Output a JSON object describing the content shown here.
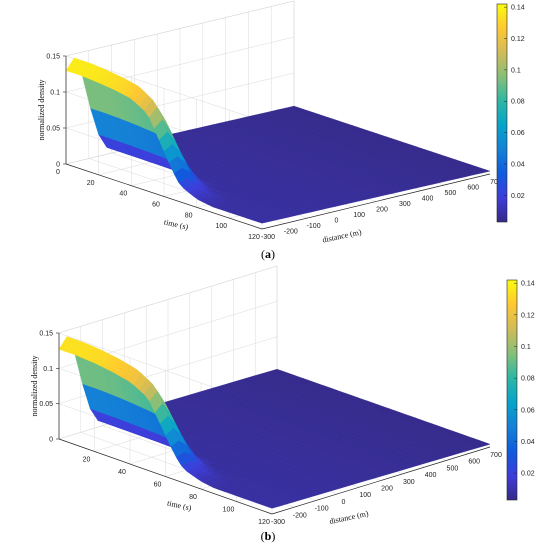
{
  "colors": {
    "surface_peak": "#f9fb0e",
    "surface_base": "#3e3ddb",
    "surface_dark": "#352a87",
    "grid": "#d9d9d9",
    "axis": "#262626",
    "colormap": [
      "#352a87",
      "#3e3ddb",
      "#0f5cdd",
      "#1481d6",
      "#06a4ca",
      "#2eb7a4",
      "#87bf77",
      "#d1bb59",
      "#fec832",
      "#f9fb0e"
    ]
  },
  "chart_data": [
    {
      "panel_label": "a",
      "type": "surface3d",
      "zlabel": "normalized density",
      "xlabel": "time (s)",
      "ylabel": "distance (m)",
      "time_ticks": [
        "0",
        "20",
        "40",
        "60",
        "80",
        "100",
        "120"
      ],
      "distance_ticks": [
        "-300",
        "-200",
        "-100",
        "0",
        "100",
        "200",
        "300",
        "400",
        "500",
        "600",
        "700"
      ],
      "density_ticks": [
        "0",
        "0.05",
        "0.1",
        "0.15"
      ],
      "colorbar_ticks": [
        "0.02",
        "0.04",
        "0.06",
        "0.08",
        "0.1",
        "0.12",
        "0.14"
      ],
      "time_range": [
        0,
        120
      ],
      "distance_range": [
        -300,
        700
      ],
      "density_range": [
        0,
        0.15
      ],
      "colorbar_range": [
        0.003,
        0.142
      ],
      "peak": {
        "density": 0.14,
        "time_start": 0,
        "time_end": 50
      },
      "decay_profile": {
        "time": [
          0,
          10,
          20,
          30,
          40,
          50,
          55,
          60,
          65,
          70,
          80,
          90,
          100,
          110,
          120
        ],
        "density": [
          0.145,
          0.145,
          0.143,
          0.14,
          0.135,
          0.12,
          0.095,
          0.07,
          0.045,
          0.025,
          0.013,
          0.009,
          0.007,
          0.006,
          0.005
        ]
      }
    },
    {
      "panel_label": "b",
      "type": "surface3d",
      "zlabel": "normalized density",
      "xlabel": "time (s)",
      "ylabel": "distance (m)",
      "time_ticks": [
        "20",
        "40",
        "60",
        "80",
        "100",
        "120"
      ],
      "distance_ticks": [
        "-300",
        "-200",
        "-100",
        "0",
        "100",
        "200",
        "300",
        "400",
        "500",
        "600",
        "700"
      ],
      "density_ticks": [
        "0",
        "0.05",
        "0.1",
        "0.15"
      ],
      "colorbar_ticks": [
        "0.02",
        "0.04",
        "0.06",
        "0.08",
        "0.1",
        "0.12",
        "0.14"
      ],
      "time_range": [
        0,
        120
      ],
      "distance_range": [
        -300,
        700
      ],
      "density_range": [
        0,
        0.15
      ],
      "colorbar_range": [
        0.003,
        0.142
      ],
      "peak": {
        "density": 0.14,
        "time_start": 0,
        "time_end": 50
      },
      "decay_profile": {
        "time": [
          0,
          10,
          20,
          30,
          40,
          50,
          55,
          60,
          65,
          70,
          80,
          90,
          100,
          110,
          120
        ],
        "density": [
          0.142,
          0.142,
          0.14,
          0.136,
          0.13,
          0.115,
          0.09,
          0.065,
          0.04,
          0.022,
          0.012,
          0.008,
          0.006,
          0.005,
          0.004
        ]
      }
    }
  ]
}
